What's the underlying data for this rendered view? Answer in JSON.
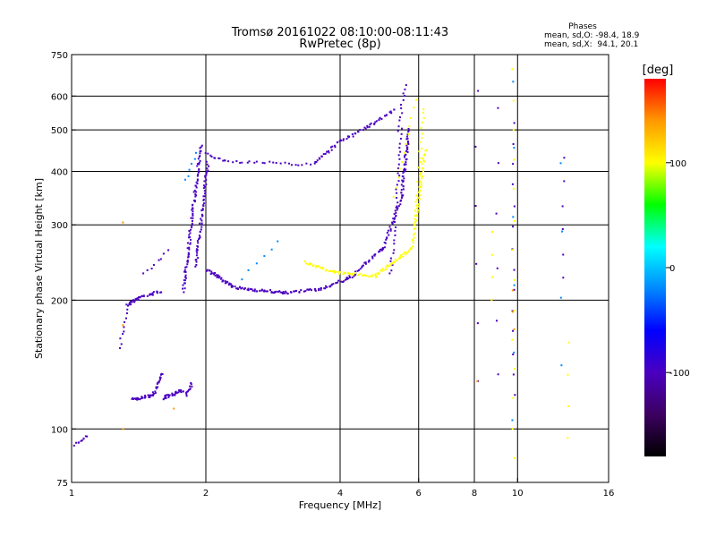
{
  "chart_data": {
    "type": "scatter",
    "title": "Tromsø 20161022 08:10:00-08:11:43",
    "subtitle": "RwPretec (8p)",
    "xlabel": "Frequency [MHz]",
    "ylabel": "Stationary phase Virtual Height [km]",
    "x_scale": "log",
    "y_scale": "log",
    "xlim": [
      1,
      16
    ],
    "ylim": [
      75,
      750
    ],
    "x_ticks": [
      1,
      2,
      4,
      6,
      8,
      10,
      16
    ],
    "y_ticks": [
      75,
      100,
      200,
      300,
      400,
      500,
      600,
      750
    ],
    "vertical_lines": [
      2,
      4,
      6,
      8,
      10
    ],
    "horizontal_lines": [
      100,
      200,
      300,
      400,
      500,
      600
    ],
    "phase_box": {
      "title": "Phases",
      "line_o": "mean, sd,O: -98.4, 18.9",
      "line_x": "mean, sd,X:  94.1, 20.1"
    },
    "colorbar": {
      "label": "[deg]",
      "range": [
        -180,
        180
      ],
      "ticks": [
        100,
        0,
        -100
      ],
      "colors": [
        "#000000",
        "#3c0060",
        "#4a00c0",
        "#0000ff",
        "#0088ff",
        "#00ffff",
        "#00ff00",
        "#ffff00",
        "#ff9900",
        "#ff0000"
      ]
    },
    "series": [
      {
        "phase": -100,
        "traces": [
          {
            "f0": 1.02,
            "f1": 1.08,
            "h0": 92,
            "h1": 96,
            "n": 10
          },
          {
            "f0": 1.33,
            "f1": 1.45,
            "h0": 195,
            "h1": 205,
            "n": 25
          },
          {
            "f0": 1.48,
            "f1": 1.58,
            "h0": 205,
            "h1": 210,
            "n": 15
          },
          {
            "f0": 1.37,
            "f1": 1.52,
            "h0": 117,
            "h1": 120,
            "n": 30
          },
          {
            "f0": 1.52,
            "f1": 1.6,
            "h0": 120,
            "h1": 135,
            "n": 20
          },
          {
            "f0": 1.6,
            "f1": 1.78,
            "h0": 118,
            "h1": 123,
            "n": 30
          },
          {
            "f0": 1.8,
            "f1": 1.86,
            "h0": 120,
            "h1": 128,
            "n": 12
          },
          {
            "f0": 1.28,
            "f1": 1.33,
            "h0": 155,
            "h1": 190,
            "n": 10
          },
          {
            "f0": 1.45,
            "f1": 1.65,
            "h0": 230,
            "h1": 260,
            "n": 8
          },
          {
            "f0": 1.78,
            "f1": 1.95,
            "h0": 210,
            "h1": 460,
            "n": 90
          },
          {
            "f0": 1.9,
            "f1": 2.02,
            "h0": 240,
            "h1": 420,
            "n": 60
          },
          {
            "f0": 2.02,
            "f1": 2.3,
            "h0": 235,
            "h1": 215,
            "n": 35
          },
          {
            "f0": 2.3,
            "f1": 3.0,
            "h0": 214,
            "h1": 208,
            "n": 45
          },
          {
            "f0": 3.0,
            "f1": 3.6,
            "h0": 208,
            "h1": 212,
            "n": 25
          },
          {
            "f0": 3.6,
            "f1": 4.2,
            "h0": 212,
            "h1": 225,
            "n": 25
          },
          {
            "f0": 4.2,
            "f1": 5.0,
            "h0": 225,
            "h1": 265,
            "n": 30
          },
          {
            "f0": 5.0,
            "f1": 5.5,
            "h0": 265,
            "h1": 350,
            "n": 30
          },
          {
            "f0": 5.5,
            "f1": 5.7,
            "h0": 350,
            "h1": 500,
            "n": 45
          },
          {
            "f0": 5.2,
            "f1": 5.5,
            "h0": 230,
            "h1": 500,
            "n": 35
          },
          {
            "f0": 5.4,
            "f1": 5.6,
            "h0": 500,
            "h1": 640,
            "n": 12
          },
          {
            "f0": 2.0,
            "f1": 2.2,
            "h0": 440,
            "h1": 425,
            "n": 10
          },
          {
            "f0": 2.2,
            "f1": 3.5,
            "h0": 422,
            "h1": 415,
            "n": 25
          },
          {
            "f0": 3.5,
            "f1": 4.0,
            "h0": 420,
            "h1": 470,
            "n": 20
          },
          {
            "f0": 4.0,
            "f1": 4.8,
            "h0": 470,
            "h1": 520,
            "n": 25
          },
          {
            "f0": 4.8,
            "f1": 5.3,
            "h0": 520,
            "h1": 560,
            "n": 15
          },
          {
            "f0": 8.1,
            "f1": 8.1,
            "h0": 130,
            "h1": 620,
            "n": 6
          },
          {
            "f0": 9.0,
            "f1": 9.0,
            "h0": 135,
            "h1": 560,
            "n": 6
          },
          {
            "f0": 9.8,
            "f1": 9.8,
            "h0": 120,
            "h1": 520,
            "n": 14
          },
          {
            "f0": 12.7,
            "f1": 12.7,
            "h0": 225,
            "h1": 430,
            "n": 6
          }
        ]
      },
      {
        "phase": 94,
        "traces": [
          {
            "f0": 3.35,
            "f1": 3.9,
            "h0": 245,
            "h1": 232,
            "n": 25
          },
          {
            "f0": 3.9,
            "f1": 4.8,
            "h0": 232,
            "h1": 228,
            "n": 30
          },
          {
            "f0": 4.8,
            "f1": 5.8,
            "h0": 228,
            "h1": 265,
            "n": 35
          },
          {
            "f0": 5.8,
            "f1": 6.2,
            "h0": 265,
            "h1": 450,
            "n": 45
          },
          {
            "f0": 5.9,
            "f1": 6.15,
            "h0": 300,
            "h1": 560,
            "n": 25
          },
          {
            "f0": 5.3,
            "f1": 5.9,
            "h0": 350,
            "h1": 590,
            "n": 12
          },
          {
            "f0": 9.8,
            "f1": 9.8,
            "h0": 85,
            "h1": 690,
            "n": 14
          },
          {
            "f0": 8.8,
            "f1": 8.8,
            "h0": 200,
            "h1": 290,
            "n": 4
          },
          {
            "f0": 13.0,
            "f1": 13.0,
            "h0": 95,
            "h1": 160,
            "n": 4
          }
        ]
      },
      {
        "phase": -10,
        "traces": [
          {
            "f0": 1.8,
            "f1": 1.9,
            "h0": 380,
            "h1": 440,
            "n": 6
          },
          {
            "f0": 2.4,
            "f1": 2.9,
            "h0": 225,
            "h1": 275,
            "n": 6
          },
          {
            "f0": 9.8,
            "f1": 9.8,
            "h0": 105,
            "h1": 650,
            "n": 6
          },
          {
            "f0": 12.5,
            "f1": 12.5,
            "h0": 140,
            "h1": 420,
            "n": 4
          }
        ]
      },
      {
        "phase": 140,
        "traces": [
          {
            "f0": 1.3,
            "f1": 1.3,
            "h0": 100,
            "h1": 305,
            "n": 3
          },
          {
            "f0": 1.7,
            "f1": 1.7,
            "h0": 112,
            "h1": 112,
            "n": 1
          },
          {
            "f0": 8.1,
            "f1": 8.1,
            "h0": 130,
            "h1": 130,
            "n": 1
          },
          {
            "f0": 9.8,
            "f1": 9.8,
            "h0": 170,
            "h1": 210,
            "n": 3
          }
        ]
      }
    ]
  }
}
